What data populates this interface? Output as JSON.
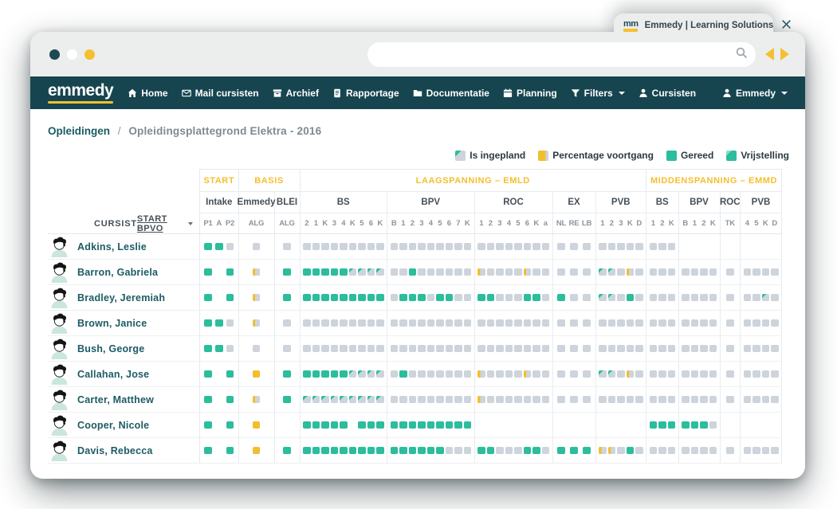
{
  "browser": {
    "tab": {
      "title": "Emmedy | Learning Solutions",
      "favicon": "emmedy-mm-favicon",
      "close_icon": "close-icon"
    },
    "traffic_lights": [
      "#1D4A52",
      "#FFFFFF",
      "#F5C02F"
    ],
    "url_value": "",
    "search_icon": "search-icon",
    "back_icon": "back-arrow-icon",
    "forward_icon": "forward-arrow-icon"
  },
  "navbar": {
    "logo": "emmedy",
    "items": [
      {
        "label": "Home",
        "icon": "home-icon"
      },
      {
        "label": "Mail cursisten",
        "icon": "mail-icon"
      },
      {
        "label": "Archief",
        "icon": "archive-icon"
      },
      {
        "label": "Rapportage",
        "icon": "report-icon"
      },
      {
        "label": "Documentatie",
        "icon": "folder-icon"
      },
      {
        "label": "Planning",
        "icon": "calendar-icon"
      },
      {
        "label": "Filters",
        "icon": "filter-icon",
        "dropdown": true
      },
      {
        "label": "Cursisten",
        "icon": "person-icon"
      }
    ],
    "user": {
      "label": "Emmedy",
      "icon": "person-icon",
      "dropdown": true
    }
  },
  "breadcrumb": {
    "root": "Opleidingen",
    "separator": "/",
    "current": "Opleidingsplattegrond Elektra - 2016"
  },
  "legend": [
    {
      "label": "Is ingepland",
      "swatch": "planned"
    },
    {
      "label": "Percentage voortgang",
      "swatch": "progress"
    },
    {
      "label": "Gereed",
      "swatch": "done"
    },
    {
      "label": "Vrijstelling",
      "swatch": "exemption"
    }
  ],
  "colors": {
    "navbar": "#16454F",
    "accent_yellow": "#F5C02F",
    "cell_done": "#2BBD9C",
    "cell_open": "#CDD4DB",
    "cell_progress": "#F3BE2D",
    "name_text": "#1D5B63"
  },
  "matrix": {
    "name_header": "CURSIST",
    "sort_header": "START BPVO",
    "cell_states": {
      "t": "gereed",
      "g": "open",
      "y": "percentage-voortgang",
      "Y": "percentage-voortgang-vol",
      "p": "is-ingepland",
      "e": "leeg"
    },
    "groups": [
      {
        "label": "START",
        "subgroups": [
          {
            "label": "Intake",
            "cols": [
              "P1",
              "A",
              "P2"
            ]
          }
        ]
      },
      {
        "label": "BASIS",
        "subgroups": [
          {
            "label": "Emmedy",
            "cols": [
              "ALG"
            ]
          },
          {
            "label": "BLEI",
            "cols": [
              "ALG"
            ]
          }
        ]
      },
      {
        "label": "LAAGSPANNING – EMLD",
        "subgroups": [
          {
            "label": "BS",
            "cols": [
              "2",
              "1",
              "K",
              "3",
              "4",
              "K",
              "5",
              "6",
              "K"
            ]
          },
          {
            "label": "BPV",
            "cols": [
              "B",
              "1",
              "2",
              "3",
              "4",
              "5",
              "6",
              "7",
              "K"
            ]
          },
          {
            "label": "ROC",
            "cols": [
              "1",
              "2",
              "3",
              "4",
              "5",
              "6",
              "K",
              "a"
            ]
          },
          {
            "label": "EX",
            "cols": [
              "NL",
              "RE",
              "LB"
            ]
          },
          {
            "label": "PVB",
            "cols": [
              "1",
              "2",
              "3",
              "K",
              "D"
            ]
          }
        ]
      },
      {
        "label": "MIDDENSPANNING – EMMD",
        "subgroups": [
          {
            "label": "BS",
            "cols": [
              "1",
              "2",
              "K"
            ]
          },
          {
            "label": "BPV",
            "cols": [
              "B",
              "1",
              "2",
              "K"
            ]
          },
          {
            "label": "ROC",
            "cols": [
              "TK"
            ]
          },
          {
            "label": "PVB",
            "cols": [
              "4",
              "5",
              "K",
              "D"
            ]
          }
        ]
      }
    ],
    "rows": [
      {
        "name": "Adkins, Leslie",
        "cells": [
          "ttg",
          "g",
          "g",
          "ggggggggg",
          "ggggggggg",
          "gggggggg",
          "ggg",
          "ggggg",
          "ggg",
          "eeee",
          "e",
          "eeee"
        ]
      },
      {
        "name": "Barron, Gabriela",
        "cells": [
          "tet",
          "y",
          "t",
          "tttttpppp",
          "ggtgggggg",
          "yggggygg",
          "ggg",
          "ppgyg",
          "ggg",
          "gggg",
          "g",
          "gggg"
        ]
      },
      {
        "name": "Bradley, Jeremiah",
        "cells": [
          "tet",
          "y",
          "t",
          "ttttttttt",
          "gtttgttgg",
          "ttgggttg",
          "tgg",
          "ppgtg",
          "ggg",
          "gggg",
          "g",
          "ggpg"
        ]
      },
      {
        "name": "Brown, Janice",
        "cells": [
          "ttg",
          "y",
          "g",
          "ggggggggg",
          "ggggggggg",
          "gggggggg",
          "ggg",
          "ggggg",
          "ggg",
          "gggg",
          "g",
          "gggg"
        ]
      },
      {
        "name": "Bush, George",
        "cells": [
          "ttg",
          "g",
          "g",
          "ggggggggg",
          "ggggggggg",
          "gggggggg",
          "ggg",
          "ggggg",
          "ggg",
          "gggg",
          "g",
          "gggg"
        ]
      },
      {
        "name": "Callahan, Jose",
        "cells": [
          "tet",
          "Y",
          "t",
          "tttttpppp",
          "gtggggggg",
          "yggggygg",
          "ggg",
          "ppgyg",
          "ggg",
          "gggg",
          "g",
          "gggg"
        ]
      },
      {
        "name": "Carter, Matthew",
        "cells": [
          "tet",
          "y",
          "t",
          "ppppppppp",
          "ggggggggg",
          "yggggggg",
          "ggg",
          "ggggg",
          "ggg",
          "gggg",
          "g",
          "gggg"
        ]
      },
      {
        "name": "Cooper, Nicole",
        "cells": [
          "tet",
          "Y",
          "e",
          "tttttettt",
          "ttttttttt",
          "eeeeeeee",
          "eee",
          "eeeee",
          "ttt",
          "tttg",
          "e",
          "eeee"
        ]
      },
      {
        "name": "Davis, Rebecca",
        "cells": [
          "tet",
          "Y",
          "t",
          "ttttttttt",
          "ttttttggg",
          "ttgggttg",
          "ttt",
          "yygtg",
          "ggg",
          "gggg",
          "g",
          "gggg"
        ]
      }
    ]
  }
}
